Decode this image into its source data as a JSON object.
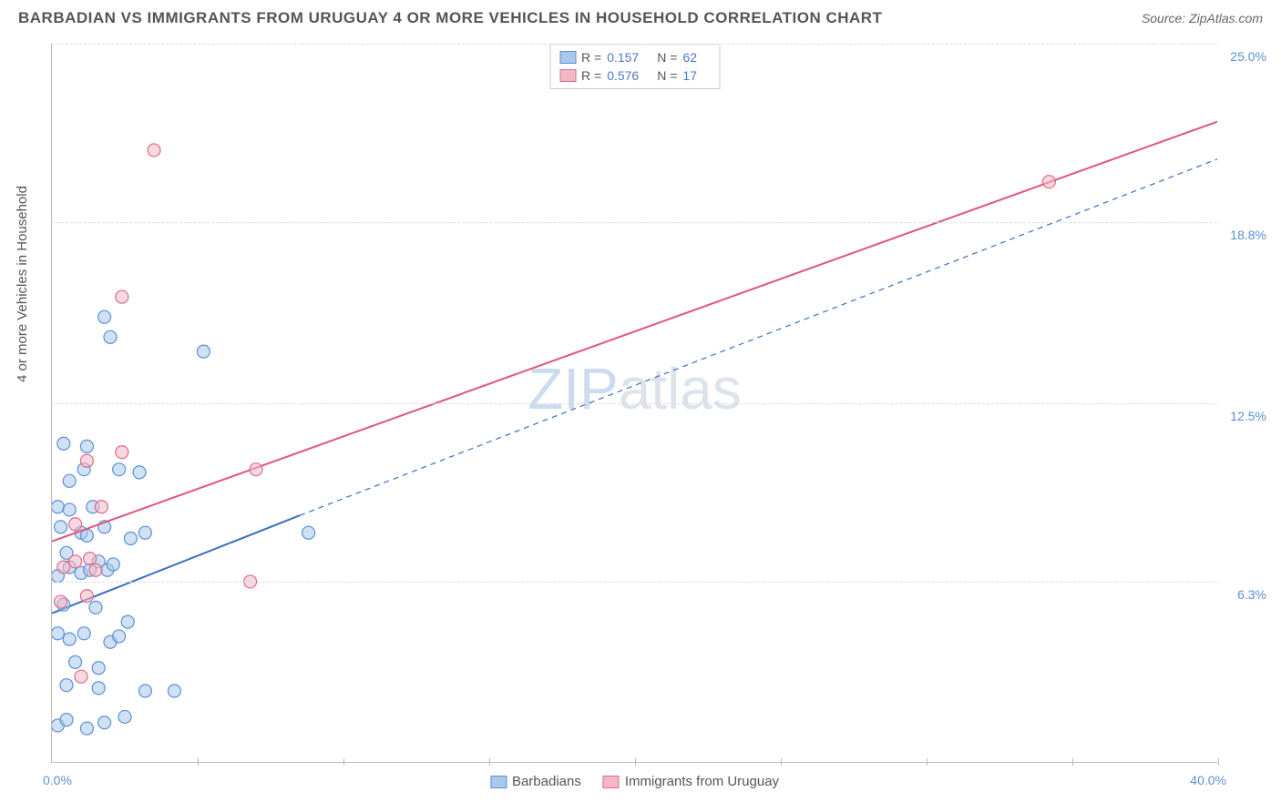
{
  "title": "BARBADIAN VS IMMIGRANTS FROM URUGUAY 4 OR MORE VEHICLES IN HOUSEHOLD CORRELATION CHART",
  "source": "Source: ZipAtlas.com",
  "ylabel": "4 or more Vehicles in Household",
  "watermark_a": "ZIP",
  "watermark_b": "atlas",
  "chart": {
    "type": "scatter-with-regression",
    "xlim": [
      0,
      40
    ],
    "ylim": [
      0,
      25
    ],
    "y_grid": [
      6.3,
      12.5,
      18.8,
      25.0
    ],
    "y_labels": [
      "6.3%",
      "12.5%",
      "18.8%",
      "25.0%"
    ],
    "x_corner_low": "0.0%",
    "x_corner_high": "40.0%",
    "x_ticks": [
      5,
      10,
      15,
      20,
      25,
      30,
      35,
      40
    ],
    "background_color": "#ffffff",
    "grid_color": "#dddddd",
    "axis_label_color": "#5b8fd6",
    "marker_radius": 7,
    "marker_opacity": 0.55,
    "line_width": 2
  },
  "series": {
    "barbadians": {
      "label": "Barbadians",
      "fill": "#a9c8ea",
      "stroke": "#5b8fd6",
      "line_color": "#3a6fc2",
      "r_value": "0.157",
      "n_value": "62",
      "regression": {
        "x1": 0,
        "y1": 5.2,
        "x2_solid": 8.5,
        "y2_solid": 8.6,
        "x2": 40,
        "y2": 21.0
      },
      "points": [
        [
          0.2,
          1.3
        ],
        [
          0.5,
          1.5
        ],
        [
          1.2,
          1.2
        ],
        [
          1.8,
          1.4
        ],
        [
          2.5,
          1.6
        ],
        [
          0.5,
          2.7
        ],
        [
          1.6,
          2.6
        ],
        [
          3.2,
          2.5
        ],
        [
          4.2,
          2.5
        ],
        [
          0.8,
          3.5
        ],
        [
          1.6,
          3.3
        ],
        [
          0.2,
          4.5
        ],
        [
          0.6,
          4.3
        ],
        [
          1.1,
          4.5
        ],
        [
          2.0,
          4.2
        ],
        [
          2.3,
          4.4
        ],
        [
          2.6,
          4.9
        ],
        [
          0.4,
          5.5
        ],
        [
          1.5,
          5.4
        ],
        [
          0.2,
          6.5
        ],
        [
          0.6,
          6.8
        ],
        [
          1.0,
          6.6
        ],
        [
          1.3,
          6.7
        ],
        [
          1.6,
          7.0
        ],
        [
          1.9,
          6.7
        ],
        [
          2.1,
          6.9
        ],
        [
          0.5,
          7.3
        ],
        [
          0.3,
          8.2
        ],
        [
          1.0,
          8.0
        ],
        [
          1.2,
          7.9
        ],
        [
          1.8,
          8.2
        ],
        [
          2.7,
          7.8
        ],
        [
          3.2,
          8.0
        ],
        [
          8.8,
          8.0
        ],
        [
          0.2,
          8.9
        ],
        [
          0.6,
          8.8
        ],
        [
          1.4,
          8.9
        ],
        [
          0.6,
          9.8
        ],
        [
          1.1,
          10.2
        ],
        [
          2.3,
          10.2
        ],
        [
          3.0,
          10.1
        ],
        [
          1.2,
          11.0
        ],
        [
          0.4,
          11.1
        ],
        [
          2.0,
          14.8
        ],
        [
          5.2,
          14.3
        ],
        [
          1.8,
          15.5
        ]
      ]
    },
    "uruguay": {
      "label": "Immigrants from Uruguay",
      "fill": "#f2b8c6",
      "stroke": "#e06a8a",
      "line_color": "#e05578",
      "r_value": "0.576",
      "n_value": "17",
      "regression": {
        "x1": 0,
        "y1": 7.7,
        "x2_solid": 40,
        "y2_solid": 22.3,
        "x2": 40,
        "y2": 22.3
      },
      "points": [
        [
          0.3,
          5.6
        ],
        [
          1.2,
          5.8
        ],
        [
          1.0,
          3.0
        ],
        [
          0.4,
          6.8
        ],
        [
          0.8,
          7.0
        ],
        [
          1.3,
          7.1
        ],
        [
          1.5,
          6.7
        ],
        [
          6.8,
          6.3
        ],
        [
          0.8,
          8.3
        ],
        [
          1.7,
          8.9
        ],
        [
          1.2,
          10.5
        ],
        [
          2.4,
          10.8
        ],
        [
          7.0,
          10.2
        ],
        [
          2.4,
          16.2
        ],
        [
          3.5,
          21.3
        ],
        [
          34.2,
          20.2
        ]
      ]
    }
  },
  "legend_top": {
    "r_label": "R  =",
    "n_label": "N  ="
  }
}
